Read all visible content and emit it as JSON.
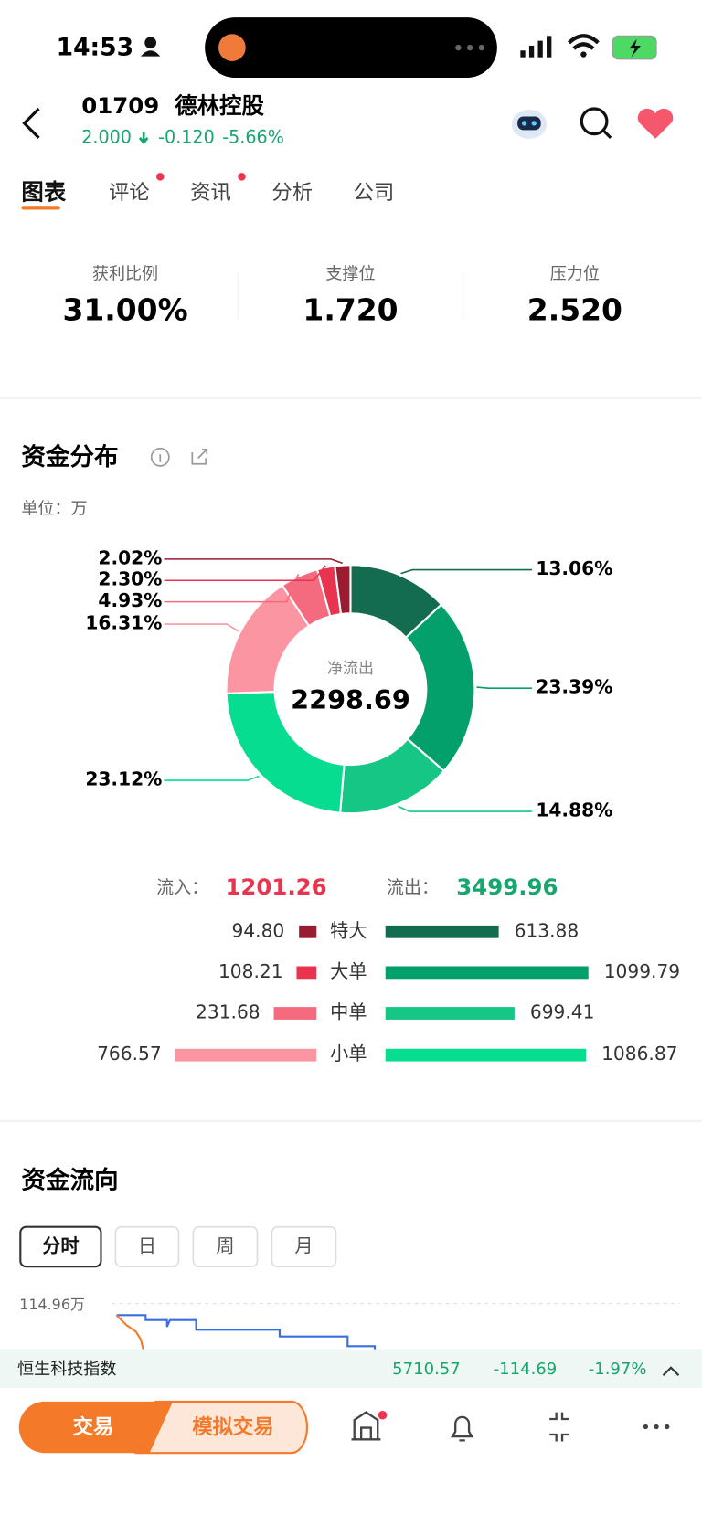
{
  "status": {
    "time": "14:53"
  },
  "header": {
    "code": "01709",
    "name": "德林控股",
    "price": "2.000",
    "change": "-0.120",
    "change_pct": "-5.66%"
  },
  "tabs": [
    "图表",
    "评论",
    "资讯",
    "分析",
    "公司"
  ],
  "stats": [
    {
      "label": "获利比例",
      "value": "31.00%"
    },
    {
      "label": "支撑位",
      "value": "1.720"
    },
    {
      "label": "压力位",
      "value": "2.520"
    }
  ],
  "fund_distribution": {
    "title": "资金分布",
    "unit": "单位：万",
    "center_label": "净流出",
    "center_value": "2298.69",
    "chart": {
      "type": "donut",
      "values": [
        13.06,
        23.39,
        14.88,
        23.12,
        16.31,
        4.93,
        2.3,
        2.02
      ],
      "value_labels": [
        "13.06%",
        "23.39%",
        "14.88%",
        "23.12%",
        "16.31%",
        "4.93%",
        "2.30%",
        "2.02%"
      ],
      "colors": [
        "#136c4f",
        "#03a06c",
        "#15c685",
        "#06dd90",
        "#fb95a1",
        "#f46b7f",
        "#e8344e",
        "#9b1b30"
      ]
    },
    "inflow_label": "流入：",
    "inflow_total": "1201.26",
    "outflow_label": "流出：",
    "outflow_total": "3499.96",
    "rows": {
      "categories": [
        "特大",
        "大单",
        "中单",
        "小单"
      ],
      "inflow": [
        94.8,
        108.21,
        231.68,
        766.57
      ],
      "inflow_labels": [
        "94.80",
        "108.21",
        "231.68",
        "766.57"
      ],
      "outflow": [
        613.88,
        1099.79,
        699.41,
        1086.87
      ],
      "outflow_labels": [
        "613.88",
        "1099.79",
        "699.41",
        "1086.87"
      ],
      "inflow_colors": [
        "#9b1b30",
        "#e8344e",
        "#f46b7f",
        "#fb95a1"
      ],
      "outflow_colors": [
        "#136c4f",
        "#03a06c",
        "#15c685",
        "#06dd90"
      ]
    }
  },
  "fund_flow": {
    "title": "资金流向",
    "periods": [
      "分时",
      "日",
      "周",
      "月"
    ],
    "axis_label": "114.96万"
  },
  "ticker": {
    "name": "恒生科技指数",
    "value": "5710.57",
    "change": "-114.69",
    "change_pct": "-1.97%"
  },
  "bottom": {
    "trade": "交易",
    "sim_trade": "模拟交易"
  }
}
